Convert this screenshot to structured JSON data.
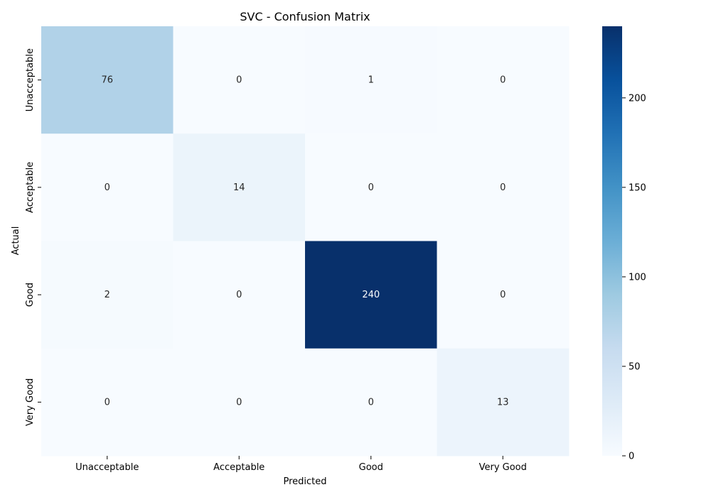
{
  "chart_data": {
    "type": "heatmap",
    "title": "SVC - Confusion Matrix",
    "xlabel": "Predicted",
    "ylabel": "Actual",
    "x_categories": [
      "Unacceptable",
      "Acceptable",
      "Good",
      "Very Good"
    ],
    "y_categories": [
      "Unacceptable",
      "Acceptable",
      "Good",
      "Very Good"
    ],
    "values": [
      [
        76,
        0,
        1,
        0
      ],
      [
        0,
        14,
        0,
        0
      ],
      [
        2,
        0,
        240,
        0
      ],
      [
        0,
        0,
        0,
        13
      ]
    ],
    "colorbar": {
      "range": [
        0,
        240
      ],
      "ticks": [
        0,
        50,
        100,
        150,
        200
      ],
      "colormap": "Blues"
    },
    "annotations_visible": true
  }
}
